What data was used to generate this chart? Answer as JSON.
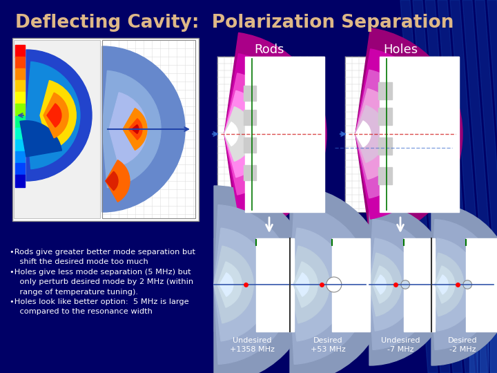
{
  "title": "Deflecting Cavity:  Polarization Separation",
  "title_color": "#DEB887",
  "bg_color": "#000066",
  "bg_color2": "#000088",
  "rods_label": "Rods",
  "holes_label": "Holes",
  "label_color": "#FFFFFF",
  "bullet_color": "#FFFFFF",
  "caption_color": "#FFFFFF",
  "arrow_color": "#CCCCCC",
  "captions": [
    "Undesired\n+1358 MHz",
    "Desired\n+53 MHz",
    "Undesired\n-7 MHz",
    "Desired\n-2 MHz"
  ],
  "bullet_lines": [
    "•Rods give greater better mode separation but",
    "    shift the desired mode too much",
    "•Holes give less mode separation (5 MHz) but",
    "    only perturb desired mode by 2 MHz (within",
    "    range of temperature tuning).",
    "•Holes look like better option:  5 MHz is large",
    "    compared to the resonance width"
  ]
}
